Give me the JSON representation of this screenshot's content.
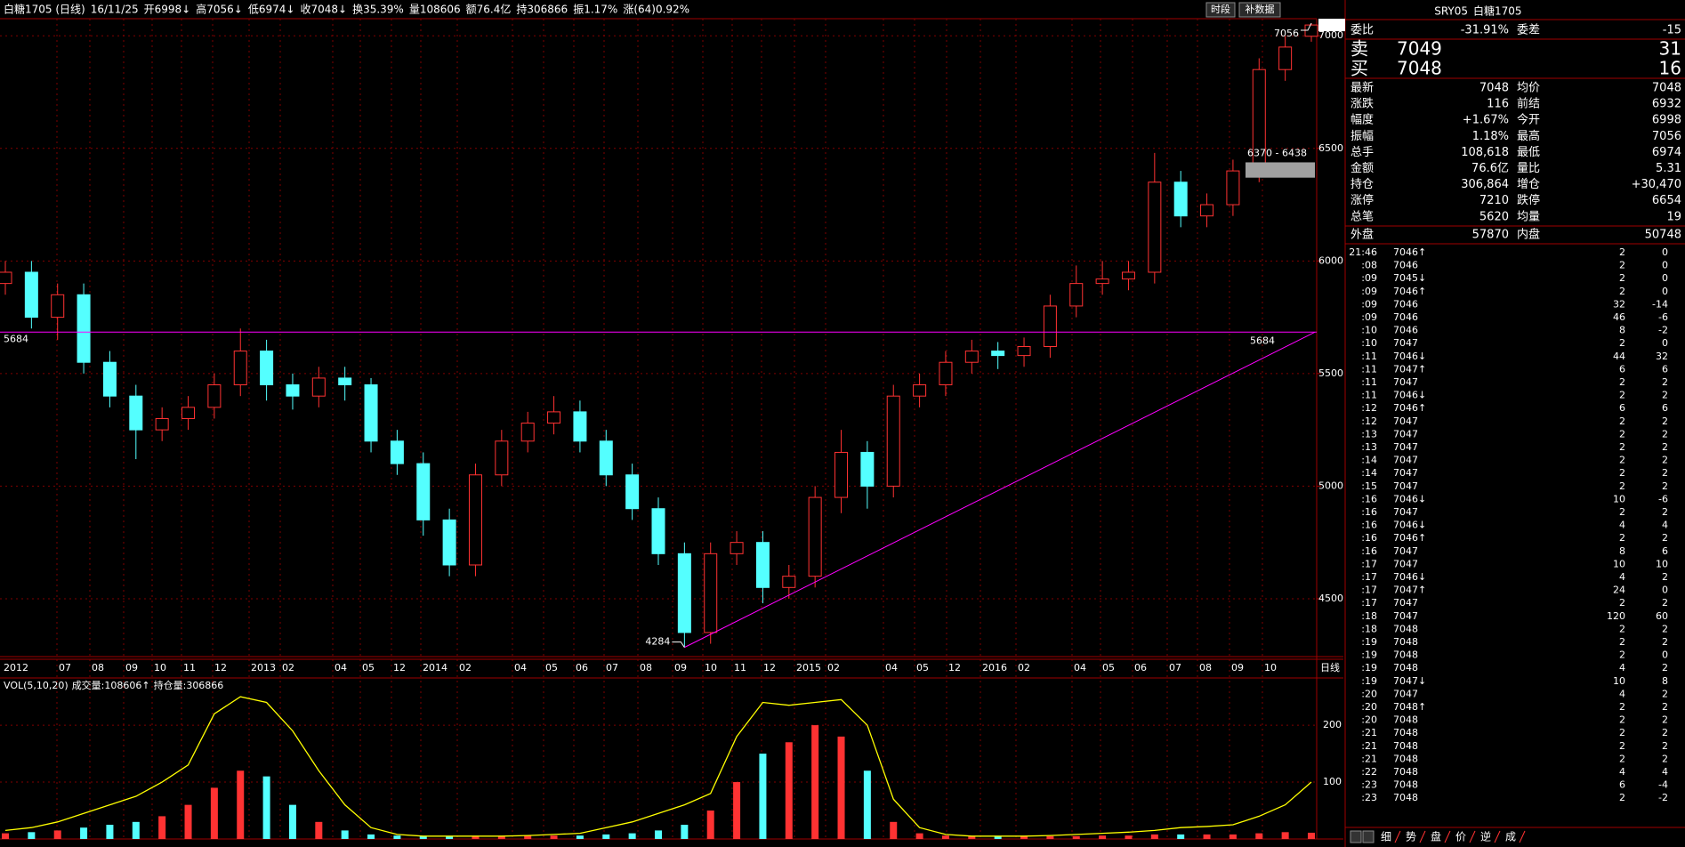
{
  "header": {
    "items": [
      "白糖1705 (日线)",
      "16/11/25",
      "开6998↓",
      "高7056↓",
      "低6974↓",
      "收7048↓",
      "换35.39%",
      "量108606",
      "额76.4亿",
      "持306866",
      "振1.17%",
      "涨(64)0.92%"
    ],
    "colors": [
      "#ffffff",
      "#ffffff",
      "#ff3232",
      "#ff3232",
      "#ff3232",
      "#ff3232",
      "#ffffff",
      "#ffffff",
      "#ffffff",
      "#ffffff",
      "#ffffff",
      "#ff3232"
    ]
  },
  "toolbar": [
    "时段",
    "补数据"
  ],
  "chart_data": [
    {
      "type": "candlestick",
      "up_color": "#ff3232",
      "down_color": "#54ffff",
      "grid": true,
      "ylim": [
        4243,
        7076
      ],
      "yticks": [
        4500,
        5000,
        5500,
        6000,
        6500,
        7000
      ],
      "x_labels": [
        "2012",
        "07",
        "08",
        "09",
        "10",
        "11",
        "12",
        "2013",
        "02",
        "04",
        "05",
        "12",
        "2014",
        "02",
        "04",
        "05",
        "06",
        "07",
        "08",
        "09",
        "10",
        "11",
        "12",
        "2015",
        "02",
        "04",
        "05",
        "12",
        "2016",
        "02",
        "04",
        "05",
        "06",
        "07",
        "08",
        "09",
        "10"
      ],
      "period": "日线",
      "open": [
        5900,
        5950,
        5750,
        5850,
        5550,
        5400,
        5250,
        5300,
        5350,
        5450,
        5600,
        5450,
        5400,
        5480,
        5450,
        5200,
        5100,
        4850,
        4650,
        5050,
        5200,
        5280,
        5330,
        5200,
        5050,
        4900,
        4700,
        4350,
        4700,
        4750,
        4550,
        4600,
        4950,
        5150,
        5000,
        5400,
        5450,
        5550,
        5600,
        5580,
        5620,
        5800,
        5900,
        5920,
        5950,
        6350,
        6200,
        6250,
        6400,
        6850,
        6998
      ],
      "high": [
        6000,
        6000,
        5900,
        5900,
        5600,
        5450,
        5350,
        5400,
        5500,
        5700,
        5650,
        5500,
        5530,
        5530,
        5480,
        5250,
        5150,
        4900,
        5100,
        5250,
        5330,
        5400,
        5380,
        5250,
        5100,
        4950,
        4750,
        4750,
        4800,
        4800,
        4650,
        5000,
        5250,
        5200,
        5450,
        5500,
        5600,
        5650,
        5640,
        5660,
        5850,
        5980,
        6000,
        6000,
        6480,
        6400,
        6300,
        6450,
        6900,
        7000,
        7056
      ],
      "low": [
        5850,
        5700,
        5650,
        5500,
        5350,
        5120,
        5200,
        5250,
        5300,
        5400,
        5380,
        5340,
        5350,
        5380,
        5150,
        5050,
        4780,
        4600,
        4600,
        5000,
        5150,
        5230,
        5150,
        5000,
        4850,
        4650,
        4284,
        4300,
        4650,
        4480,
        4500,
        4550,
        4880,
        4900,
        4950,
        5350,
        5400,
        5500,
        5520,
        5530,
        5570,
        5750,
        5850,
        5870,
        5900,
        6150,
        6150,
        6200,
        6350,
        6800,
        6974
      ],
      "close": [
        5950,
        5750,
        5850,
        5550,
        5400,
        5250,
        5300,
        5350,
        5450,
        5600,
        5450,
        5400,
        5480,
        5450,
        5200,
        5100,
        4850,
        4650,
        5050,
        5200,
        5280,
        5330,
        5200,
        5050,
        4900,
        4700,
        4350,
        4700,
        4750,
        4550,
        4600,
        4950,
        5150,
        5000,
        5400,
        5450,
        5550,
        5600,
        5580,
        5620,
        5800,
        5900,
        5920,
        5950,
        6350,
        6200,
        6250,
        6400,
        6850,
        6950,
        7048
      ],
      "annotations": {
        "hline": 5684,
        "hline_color": "#ff00ff",
        "low": 4284,
        "high": 7056,
        "last": 7048,
        "range_box": {
          "low": 6370,
          "high": 6438,
          "label": "6370 - 6438"
        }
      }
    },
    {
      "type": "bar",
      "title": "VOL(5,10,20)",
      "legend": [
        "成交量:108606↑",
        "持仓量:306866"
      ],
      "legend_colors": [
        "#ffffff",
        "#ffff00"
      ],
      "ylim": [
        0,
        283
      ],
      "yticks": [
        100,
        200
      ],
      "series": [
        {
          "values": [
            10,
            12,
            15,
            20,
            25,
            30,
            40,
            60,
            90,
            120,
            110,
            60,
            30,
            15,
            8,
            6,
            5,
            5,
            5,
            5,
            6,
            6,
            6,
            8,
            10,
            15,
            25,
            50,
            100,
            150,
            170,
            200,
            180,
            120,
            30,
            10,
            6,
            5,
            5,
            5,
            5,
            5,
            6,
            6,
            8,
            8,
            8,
            8,
            10,
            12,
            11
          ]
        },
        {
          "color": "#ffff00",
          "values": [
            15,
            20,
            30,
            45,
            60,
            75,
            100,
            130,
            220,
            250,
            240,
            190,
            120,
            60,
            20,
            8,
            5,
            5,
            5,
            5,
            6,
            8,
            10,
            20,
            30,
            45,
            60,
            80,
            180,
            240,
            235,
            240,
            245,
            200,
            70,
            20,
            8,
            5,
            5,
            5,
            6,
            8,
            10,
            12,
            15,
            20,
            22,
            25,
            40,
            60,
            100
          ]
        }
      ]
    }
  ],
  "quote": {
    "code": "SRY05",
    "name": "白糖1705",
    "ratio": [
      "委比",
      "-31.91%",
      "委差",
      "-15"
    ],
    "book": [
      [
        "卖",
        "7049",
        "31"
      ],
      [
        "买",
        "7048",
        "16"
      ]
    ],
    "stats": [
      [
        "最新",
        "7048",
        "均价",
        "7048"
      ],
      [
        "涨跌",
        "116",
        "前结",
        "6932"
      ],
      [
        "幅度",
        "+1.67%",
        "今开",
        "6998"
      ],
      [
        "振幅",
        "1.18%",
        "最高",
        "7056"
      ],
      [
        "总手",
        "108,618",
        "最低",
        "6974"
      ],
      [
        "金额",
        "76.6亿",
        "量比",
        "5.31"
      ],
      [
        "持仓",
        "306,864",
        "增仓",
        "+30,470"
      ],
      [
        "涨停",
        "7210",
        "跌停",
        "6654"
      ],
      [
        "总笔",
        "5620",
        "均量",
        "19"
      ],
      [
        "外盘",
        "57870",
        "内盘",
        "50748"
      ]
    ],
    "stat_colors": [
      [
        "#ff3232",
        "#ff3232"
      ],
      [
        "#ff3232",
        "#ffffff"
      ],
      [
        "#ff3232",
        "#ff3232"
      ],
      [
        "#ffffff",
        "#ff3232"
      ],
      [
        "#ffffff",
        "#ff3232"
      ],
      [
        "#ffffff",
        "#ffffff"
      ],
      [
        "#ffffff",
        "#ffffff"
      ],
      [
        "#ff3232",
        "#00e600"
      ],
      [
        "#ffffff",
        "#ffffff"
      ],
      [
        "#ff3232",
        "#00e600"
      ]
    ]
  },
  "ticks": [
    [
      "21:46",
      "7046↑",
      "2",
      "0"
    ],
    [
      ":08",
      "7046",
      "2",
      "0"
    ],
    [
      ":09",
      "7045↓",
      "2",
      "0"
    ],
    [
      ":09",
      "7046↑",
      "2",
      "0"
    ],
    [
      ":09",
      "7046",
      "32",
      "-14"
    ],
    [
      ":09",
      "7046",
      "46",
      "-6"
    ],
    [
      ":10",
      "7046",
      "8",
      "-2"
    ],
    [
      ":10",
      "7047",
      "2",
      "0"
    ],
    [
      ":11",
      "7046↓",
      "44",
      "32"
    ],
    [
      ":11",
      "7047↑",
      "6",
      "6"
    ],
    [
      ":11",
      "7047",
      "2",
      "2"
    ],
    [
      ":11",
      "7046↓",
      "2",
      "2"
    ],
    [
      ":12",
      "7046↑",
      "6",
      "6"
    ],
    [
      ":12",
      "7047",
      "2",
      "2"
    ],
    [
      ":13",
      "7047",
      "2",
      "2"
    ],
    [
      ":13",
      "7047",
      "2",
      "2"
    ],
    [
      ":14",
      "7047",
      "2",
      "2"
    ],
    [
      ":14",
      "7047",
      "2",
      "2"
    ],
    [
      ":15",
      "7047",
      "2",
      "2"
    ],
    [
      ":16",
      "7046↓",
      "10",
      "-6"
    ],
    [
      ":16",
      "7047",
      "2",
      "2"
    ],
    [
      ":16",
      "7046↓",
      "4",
      "4"
    ],
    [
      ":16",
      "7046↑",
      "2",
      "2"
    ],
    [
      ":16",
      "7047",
      "8",
      "6"
    ],
    [
      ":17",
      "7047",
      "10",
      "10"
    ],
    [
      ":17",
      "7046↓",
      "4",
      "2"
    ],
    [
      ":17",
      "7047↑",
      "24",
      "0"
    ],
    [
      ":17",
      "7047",
      "2",
      "2"
    ],
    [
      ":18",
      "7047",
      "120",
      "60"
    ],
    [
      ":18",
      "7048",
      "2",
      "2"
    ],
    [
      ":19",
      "7048",
      "2",
      "2"
    ],
    [
      ":19",
      "7048",
      "2",
      "0"
    ],
    [
      ":19",
      "7048",
      "4",
      "2"
    ],
    [
      ":19",
      "7047↓",
      "10",
      "8"
    ],
    [
      ":20",
      "7047",
      "4",
      "2"
    ],
    [
      ":20",
      "7048↑",
      "2",
      "2"
    ],
    [
      ":20",
      "7048",
      "2",
      "2"
    ],
    [
      ":21",
      "7048",
      "2",
      "2"
    ],
    [
      ":21",
      "7048",
      "2",
      "2"
    ],
    [
      ":21",
      "7048",
      "2",
      "2"
    ],
    [
      ":22",
      "7048",
      "4",
      "4"
    ],
    [
      ":23",
      "7048",
      "6",
      "-4"
    ],
    [
      ":23",
      "7048",
      "2",
      "-2"
    ]
  ],
  "tabs": [
    "细",
    "势",
    "盘",
    "价",
    "逆",
    "成"
  ]
}
